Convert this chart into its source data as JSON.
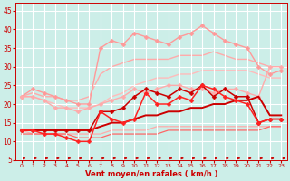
{
  "x": [
    0,
    1,
    2,
    3,
    4,
    5,
    6,
    7,
    8,
    9,
    10,
    11,
    12,
    13,
    14,
    15,
    16,
    17,
    18,
    19,
    20,
    21,
    22,
    23
  ],
  "lines": [
    {
      "y": [
        22,
        24,
        23,
        22,
        21,
        20,
        20,
        35,
        37,
        36,
        39,
        38,
        37,
        36,
        38,
        39,
        41,
        39,
        37,
        36,
        35,
        30,
        28,
        29
      ],
      "color": "#ff9999",
      "lw": 1.0,
      "marker": "D",
      "ms": 2.5,
      "zorder": 2
    },
    {
      "y": [
        22,
        23,
        22,
        22,
        21,
        21,
        22,
        28,
        30,
        31,
        32,
        32,
        32,
        32,
        33,
        33,
        33,
        34,
        33,
        32,
        32,
        31,
        30,
        30
      ],
      "color": "#ffaaaa",
      "lw": 1.0,
      "marker": null,
      "ms": 0,
      "zorder": 1
    },
    {
      "y": [
        22,
        22,
        21,
        20,
        19,
        19,
        19,
        20,
        22,
        23,
        25,
        26,
        27,
        27,
        28,
        28,
        29,
        29,
        29,
        29,
        29,
        28,
        27,
        27
      ],
      "color": "#ffbbbb",
      "lw": 1.0,
      "marker": null,
      "ms": 0,
      "zorder": 1
    },
    {
      "y": [
        22,
        22,
        21,
        19,
        19,
        18,
        19,
        20,
        21,
        22,
        24,
        23,
        24,
        25,
        25,
        24,
        24,
        23,
        24,
        24,
        23,
        22,
        30,
        30
      ],
      "color": "#ffaaaa",
      "lw": 1.0,
      "marker": "D",
      "ms": 2.5,
      "zorder": 2
    },
    {
      "y": [
        13,
        13,
        13,
        13,
        13,
        13,
        13,
        18,
        18,
        19,
        22,
        24,
        23,
        22,
        24,
        23,
        25,
        22,
        24,
        22,
        22,
        15,
        16,
        16
      ],
      "color": "#cc0000",
      "lw": 1.1,
      "marker": "D",
      "ms": 2.5,
      "zorder": 4
    },
    {
      "y": [
        13,
        13,
        12,
        12,
        11,
        10,
        10,
        18,
        16,
        15,
        16,
        23,
        20,
        20,
        22,
        21,
        25,
        24,
        22,
        21,
        20,
        15,
        16,
        16
      ],
      "color": "#ff2222",
      "lw": 1.1,
      "marker": "D",
      "ms": 2.5,
      "zorder": 4
    },
    {
      "y": [
        13,
        13,
        13,
        13,
        13,
        13,
        13,
        14,
        15,
        15,
        16,
        17,
        17,
        18,
        18,
        19,
        19,
        20,
        20,
        21,
        21,
        22,
        17,
        17
      ],
      "color": "#cc0000",
      "lw": 1.4,
      "marker": null,
      "ms": 0,
      "zorder": 3
    },
    {
      "y": [
        13,
        12,
        12,
        12,
        12,
        12,
        12,
        12,
        13,
        13,
        13,
        13,
        14,
        14,
        14,
        14,
        14,
        14,
        14,
        14,
        14,
        14,
        14,
        14
      ],
      "color": "#ffaaaa",
      "lw": 0.9,
      "marker": null,
      "ms": 0,
      "zorder": 1
    },
    {
      "y": [
        12,
        12,
        12,
        12,
        12,
        11,
        11,
        11,
        12,
        12,
        12,
        12,
        12,
        13,
        13,
        13,
        13,
        13,
        13,
        13,
        13,
        13,
        14,
        14
      ],
      "color": "#ff6666",
      "lw": 0.9,
      "marker": null,
      "ms": 0,
      "zorder": 1
    }
  ],
  "xlabel": "Vent moyen/en rafales ( km/h )",
  "ylim": [
    5,
    47
  ],
  "xlim": [
    -0.5,
    23.5
  ],
  "yticks": [
    5,
    10,
    15,
    20,
    25,
    30,
    35,
    40,
    45
  ],
  "xticks": [
    0,
    1,
    2,
    3,
    4,
    5,
    6,
    7,
    8,
    9,
    10,
    11,
    12,
    13,
    14,
    15,
    16,
    17,
    18,
    19,
    20,
    21,
    22,
    23
  ],
  "bg_color": "#cceee8",
  "grid_color": "#ffffff",
  "tick_color": "#cc0000",
  "label_color": "#cc0000"
}
